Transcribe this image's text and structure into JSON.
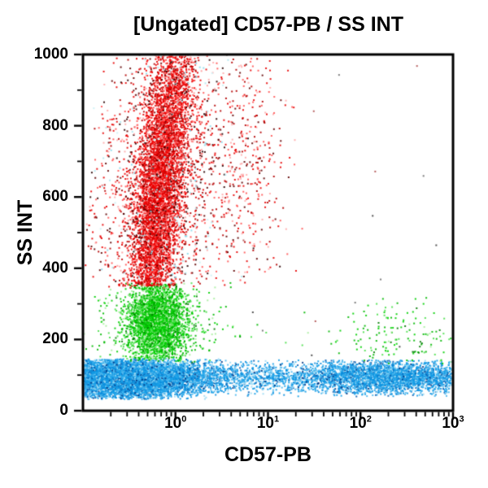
{
  "chart_data": {
    "type": "scatter",
    "title": "[Ungated] CD57-PB / SS INT",
    "xlabel": "CD57-PB",
    "ylabel": "SS INT",
    "x_scale": "log",
    "x_log_range": [
      -1,
      3
    ],
    "x_tick_base": "10",
    "x_tick_exponents": [
      0,
      1,
      2,
      3
    ],
    "x_minor_subs": [
      2,
      3,
      4,
      5,
      6,
      7,
      8,
      9
    ],
    "y_range": [
      0,
      1000
    ],
    "y_major_ticks": [
      0,
      200,
      400,
      600,
      800,
      1000
    ],
    "y_minor_ticks": [
      100,
      300,
      500,
      700,
      900
    ],
    "grid": false,
    "legend": "none",
    "frame_color": "#000000",
    "background_color": "#ffffff",
    "seed": 20,
    "point_size": 2,
    "populations": [
      {
        "name": "blue-population-dense-blob",
        "alpha": 0.9,
        "n": 6800,
        "palette": [
          "#17a0e8",
          "#0b8ede",
          "#4db8ee",
          "#9cdcf4",
          "#0a5fb4",
          "#063a86"
        ],
        "weights": [
          0.34,
          0.26,
          0.2,
          0.1,
          0.06,
          0.04
        ],
        "x": {
          "dist": "normal",
          "mean": -0.52,
          "sd": 0.38,
          "min": -0.995,
          "max": 0.9
        },
        "y": {
          "dist": "normal",
          "mean": 90,
          "sd": 26,
          "min": 32,
          "max": 146
        }
      },
      {
        "name": "blue-band-full-width",
        "alpha": 0.9,
        "n": 3200,
        "palette": [
          "#17a0e8",
          "#0b8ede",
          "#4db8ee",
          "#9cdcf4",
          "#0a5fb4",
          "#063a86"
        ],
        "weights": [
          0.3,
          0.24,
          0.22,
          0.12,
          0.07,
          0.05
        ],
        "x": {
          "dist": "uniform",
          "min": -0.99,
          "max": 2.99
        },
        "y": {
          "dist": "normal",
          "mean": 96,
          "sd": 22,
          "min": 40,
          "max": 142
        }
      },
      {
        "name": "blue-band-right-cluster",
        "alpha": 0.9,
        "n": 1600,
        "palette": [
          "#17a0e8",
          "#0b8ede",
          "#4db8ee",
          "#9cdcf4",
          "#0a5fb4",
          "#063a86"
        ],
        "weights": [
          0.34,
          0.26,
          0.2,
          0.1,
          0.06,
          0.04
        ],
        "x": {
          "dist": "normal",
          "mean": 2.3,
          "sd": 0.4,
          "min": 1.2,
          "max": 2.98
        },
        "y": {
          "dist": "normal",
          "mean": 94,
          "sd": 24,
          "min": 40,
          "max": 142
        }
      },
      {
        "name": "green-population-core",
        "alpha": 0.9,
        "n": 2700,
        "palette": [
          "#00d000",
          "#00b800",
          "#4ce04c",
          "#a8eea0",
          "#007a00"
        ],
        "weights": [
          0.38,
          0.26,
          0.2,
          0.1,
          0.06
        ],
        "x": {
          "dist": "normal",
          "mean": -0.2,
          "sd": 0.145,
          "min": -1,
          "max": 3
        },
        "y": {
          "dist": "normal",
          "mean": 248,
          "sd": 57,
          "min": 142,
          "max": 353
        }
      },
      {
        "name": "green-population-halo",
        "alpha": 0.9,
        "n": 650,
        "palette": [
          "#00d000",
          "#00b800",
          "#4ce04c",
          "#a8eea0",
          "#007a00"
        ],
        "weights": [
          0.3,
          0.25,
          0.22,
          0.15,
          0.08
        ],
        "x": {
          "dist": "normal",
          "mean": -0.17,
          "sd": 0.32,
          "min": -1,
          "max": 3
        },
        "y": {
          "dist": "normal",
          "mean": 250,
          "sd": 85,
          "min": 135,
          "max": 360
        }
      },
      {
        "name": "green-sparse-right",
        "alpha": 0.9,
        "n": 150,
        "palette": [
          "#00d000",
          "#00b800",
          "#4ce04c",
          "#a8eea0",
          "#007a00"
        ],
        "weights": [
          0.34,
          0.26,
          0.2,
          0.12,
          0.08
        ],
        "x": {
          "dist": "normal",
          "mean": 2.45,
          "sd": 0.5,
          "min": 0.8,
          "max": 2.99
        },
        "y": {
          "dist": "normal",
          "mean": 205,
          "sd": 58,
          "min": 128,
          "max": 320
        }
      },
      {
        "name": "red-population-core",
        "alpha": 0.9,
        "n": 5200,
        "palette": [
          "#f20000",
          "#e00000",
          "#ff4444",
          "#c00000",
          "#ff9999",
          "#7a0000"
        ],
        "weights": [
          0.36,
          0.24,
          0.16,
          0.12,
          0.07,
          0.05
        ],
        "x": {
          "dist": "normal",
          "mean": -0.22,
          "sd": 0.13,
          "min": -1,
          "max": 3
        },
        "tilt": {
          "per_y": 0.00042,
          "ref": 500
        },
        "y": {
          "dist": "normal",
          "mean": 610,
          "sd": 255,
          "min": 350,
          "max": 1002
        }
      },
      {
        "name": "red-population-halo",
        "alpha": 0.9,
        "n": 1500,
        "palette": [
          "#e80000",
          "#ff5555",
          "#b40000",
          "#600000",
          "#2a0000",
          "#ffaaaa"
        ],
        "weights": [
          0.3,
          0.2,
          0.2,
          0.12,
          0.08,
          0.1
        ],
        "x": {
          "dist": "normal",
          "mean": -0.2,
          "sd": 0.4,
          "min": -1,
          "max": 3
        },
        "tilt": {
          "per_y": 0.00042,
          "ref": 500
        },
        "y": {
          "dist": "normal",
          "mean": 640,
          "sd": 260,
          "min": 345,
          "max": 1002
        }
      },
      {
        "name": "red-sparse-column-right",
        "alpha": 0.9,
        "n": 300,
        "palette": [
          "#e80000",
          "#ff5555",
          "#b40000",
          "#600000",
          "#ffaaaa"
        ],
        "weights": [
          0.3,
          0.25,
          0.2,
          0.1,
          0.15
        ],
        "x": {
          "dist": "normal",
          "mean": 0.8,
          "sd": 0.22,
          "min": 0.35,
          "max": 1.55
        },
        "y": {
          "dist": "normal",
          "mean": 680,
          "sd": 200,
          "min": 355,
          "max": 1000
        }
      },
      {
        "name": "cyan-specks-in-red-region",
        "alpha": 0.9,
        "n": 170,
        "palette": [
          "#aee8f0",
          "#8adcec",
          "#cdf2f6"
        ],
        "weights": [
          0.4,
          0.35,
          0.25
        ],
        "x": {
          "dist": "normal",
          "mean": -0.1,
          "sd": 0.33,
          "min": -1,
          "max": 1.5
        },
        "y": {
          "dist": "uniform",
          "min": 355,
          "max": 995
        }
      },
      {
        "name": "noise-specks",
        "alpha": 0.9,
        "n": 20,
        "palette": [
          "#707070",
          "#b05050",
          "#404040"
        ],
        "weights": [
          0.4,
          0.3,
          0.3
        ],
        "x": {
          "dist": "uniform",
          "min": -0.5,
          "max": 2.9
        },
        "y": {
          "dist": "uniform",
          "min": 140,
          "max": 990
        }
      }
    ]
  }
}
